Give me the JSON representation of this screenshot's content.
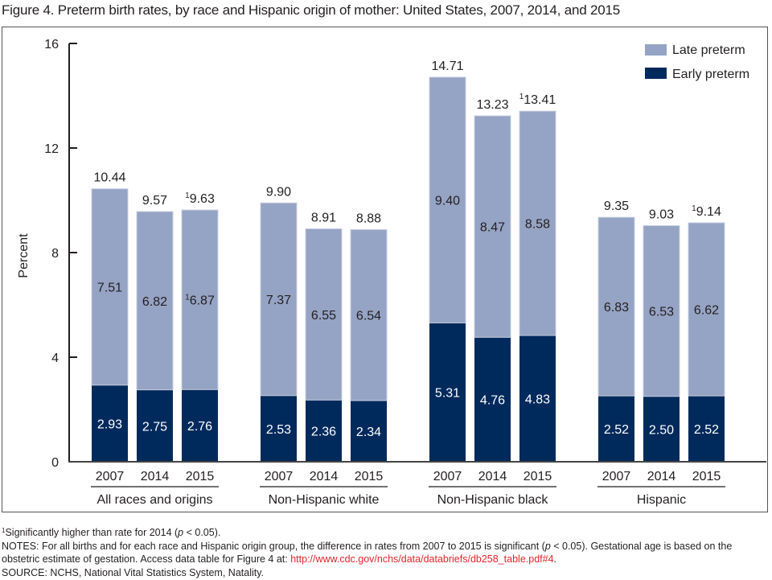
{
  "title": "Figure 4. Preterm birth rates, by race and Hispanic origin of mother: United States, 2007, 2014, and 2015",
  "colors": {
    "late": "#95a3c4",
    "early": "#002a5c",
    "axis": "#231f20"
  },
  "footnotes": {
    "sig_marker": "1",
    "sig_text": "Significantly higher than rate for 2014 (",
    "sig_p": "p",
    "sig_tail": " < 0.05).",
    "notes_a": "NOTES: For all births and for each race and Hispanic origin group, the difference in rates from 2007 to 2015 is significant (",
    "notes_p": "p",
    "notes_b": " < 0.05). Gestational age is based on the obstetric estimate of gestation. Access data table for Figure 4 at: ",
    "notes_link": "http://www.cdc.gov/nchs/data/databriefs/db258_table.pdf#4",
    "notes_end": ".",
    "source": "SOURCE: NCHS, National Vital Statistics System, Natality."
  },
  "chart_data": {
    "type": "bar",
    "stacked": true,
    "title": "Figure 4. Preterm birth rates, by race and Hispanic origin of mother: United States, 2007, 2014, and 2015",
    "xlabel": "",
    "ylabel": "Percent",
    "ylim": [
      0,
      16
    ],
    "yticks": [
      0,
      4,
      8,
      12,
      16
    ],
    "grid": false,
    "legend": {
      "position": "top-right",
      "entries": [
        "Late preterm",
        "Early preterm"
      ]
    },
    "groups": [
      {
        "name": "All races and origins",
        "categories": [
          "2007",
          "2014",
          "2015"
        ]
      },
      {
        "name": "Non-Hispanic white",
        "categories": [
          "2007",
          "2014",
          "2015"
        ]
      },
      {
        "name": "Non-Hispanic black",
        "categories": [
          "2007",
          "2014",
          "2015"
        ]
      },
      {
        "name": "Hispanic",
        "categories": [
          "2007",
          "2014",
          "2015"
        ]
      }
    ],
    "series": [
      {
        "name": "Early preterm",
        "values": [
          [
            2.93,
            2.75,
            2.76
          ],
          [
            2.53,
            2.36,
            2.34
          ],
          [
            5.31,
            4.76,
            4.83
          ],
          [
            2.52,
            2.5,
            2.52
          ]
        ],
        "labels": [
          [
            "2.93",
            "2.75",
            "2.76"
          ],
          [
            "2.53",
            "2.36",
            "2.34"
          ],
          [
            "5.31",
            "4.76",
            "4.83"
          ],
          [
            "2.52",
            "2.50",
            "2.52"
          ]
        ]
      },
      {
        "name": "Late preterm",
        "values": [
          [
            7.51,
            6.82,
            6.87
          ],
          [
            7.37,
            6.55,
            6.54
          ],
          [
            9.4,
            8.47,
            8.58
          ],
          [
            6.83,
            6.53,
            6.62
          ]
        ],
        "labels": [
          [
            "7.51",
            "6.82",
            "16.87"
          ],
          [
            "7.37",
            "6.55",
            "6.54"
          ],
          [
            "9.40",
            "8.47",
            "8.58"
          ],
          [
            "6.83",
            "6.53",
            "6.62"
          ]
        ]
      }
    ],
    "totals": [
      [
        10.44,
        9.57,
        9.63
      ],
      [
        9.9,
        8.91,
        8.88
      ],
      [
        14.71,
        13.23,
        13.41
      ],
      [
        9.35,
        9.03,
        9.14
      ]
    ],
    "total_labels": [
      [
        "10.44",
        "9.57",
        "9.63"
      ],
      [
        "9.90",
        "8.91",
        "8.88"
      ],
      [
        "14.71",
        "13.23",
        "13.41"
      ],
      [
        "9.35",
        "9.03",
        "9.14"
      ]
    ],
    "significance_marker": "1",
    "significant": [
      [
        false,
        false,
        true
      ],
      [
        false,
        false,
        false
      ],
      [
        false,
        false,
        true
      ],
      [
        false,
        false,
        true
      ]
    ],
    "late_label_marked": [
      [
        false,
        false,
        true
      ],
      [
        false,
        false,
        false
      ],
      [
        false,
        false,
        false
      ],
      [
        false,
        false,
        false
      ]
    ]
  }
}
